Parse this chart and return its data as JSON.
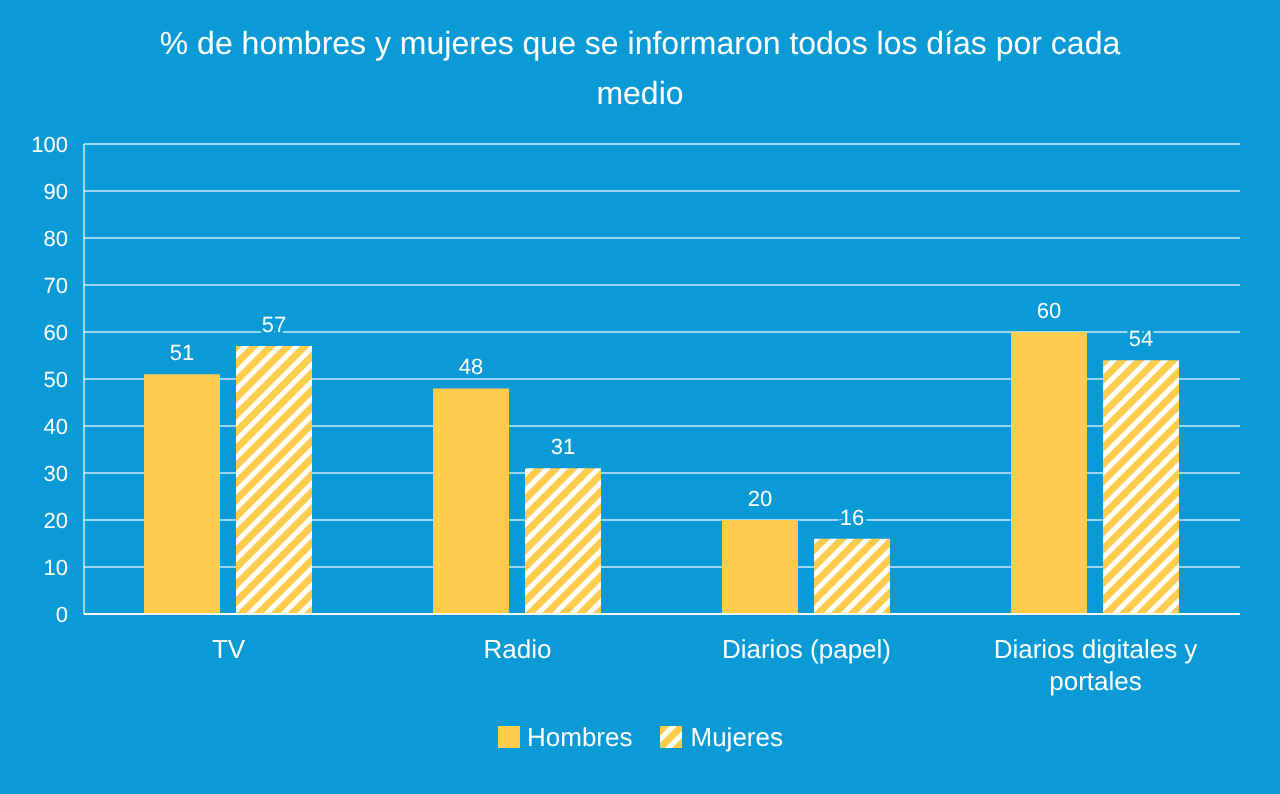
{
  "chart_data": {
    "type": "bar",
    "title": "% de hombres y mujeres que se informaron todos los días por cada medio",
    "categories": [
      "TV",
      "Radio",
      "Diarios (papel)",
      "Diarios digitales y portales"
    ],
    "series": [
      {
        "name": "Hombres",
        "color": "#ffcc4d",
        "values": [
          51,
          48,
          20,
          60
        ]
      },
      {
        "name": "Mujeres",
        "color": "#ffcc4d",
        "values": [
          57,
          31,
          16,
          54
        ]
      }
    ],
    "ylim": [
      0,
      100
    ],
    "yticks": [
      0,
      10,
      20,
      30,
      40,
      50,
      60,
      70,
      80,
      90,
      100
    ],
    "grid": "y",
    "legend": "bottom",
    "data_labels": true
  }
}
